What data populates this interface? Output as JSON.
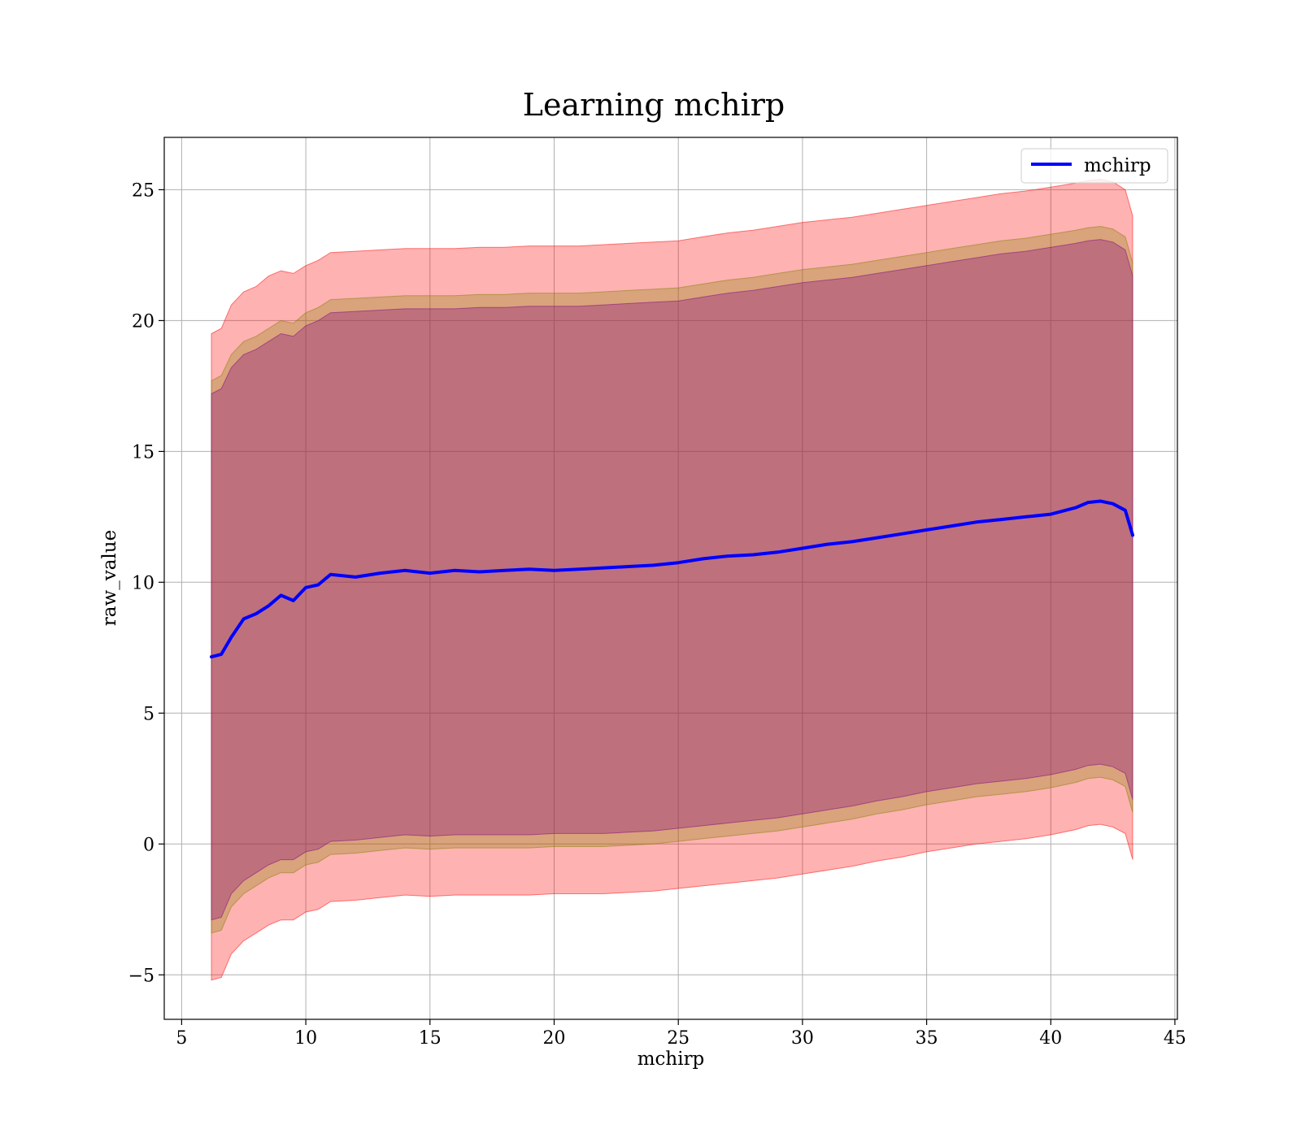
{
  "chart_data": {
    "type": "area",
    "title": "Learning mchirp",
    "xlabel": "mchirp",
    "ylabel": "raw_value",
    "xlim": [
      4.3,
      45.1
    ],
    "ylim": [
      -6.7,
      27.0
    ],
    "xticks": [
      5,
      10,
      15,
      20,
      25,
      30,
      35,
      40,
      45
    ],
    "yticks": [
      -5,
      0,
      5,
      10,
      15,
      20,
      25
    ],
    "xtick_labels": [
      "5",
      "10",
      "15",
      "20",
      "25",
      "30",
      "35",
      "40",
      "45"
    ],
    "ytick_labels": [
      "−5",
      "0",
      "5",
      "10",
      "15",
      "20",
      "25"
    ],
    "grid": true,
    "legend": {
      "position": "top-right",
      "entries": [
        "mchirp"
      ]
    },
    "x": [
      6.2,
      6.6,
      7.0,
      7.5,
      8.0,
      8.5,
      9.0,
      9.5,
      10.0,
      10.5,
      11.0,
      12.0,
      13.0,
      14.0,
      15.0,
      16.0,
      17.0,
      18.0,
      19.0,
      20.0,
      21.0,
      22.0,
      23.0,
      24.0,
      25.0,
      26.0,
      27.0,
      28.0,
      29.0,
      30.0,
      31.0,
      32.0,
      33.0,
      34.0,
      35.0,
      36.0,
      37.0,
      38.0,
      39.0,
      40.0,
      41.0,
      41.5,
      42.0,
      42.5,
      43.0,
      43.3
    ],
    "series": [
      {
        "name": "mchirp",
        "color": "#0000ff",
        "values": [
          7.15,
          7.25,
          7.9,
          8.6,
          8.8,
          9.1,
          9.5,
          9.3,
          9.8,
          9.9,
          10.3,
          10.2,
          10.35,
          10.45,
          10.35,
          10.45,
          10.4,
          10.45,
          10.5,
          10.45,
          10.5,
          10.55,
          10.6,
          10.65,
          10.75,
          10.9,
          11.0,
          11.05,
          11.15,
          11.3,
          11.45,
          11.55,
          11.7,
          11.85,
          12.0,
          12.15,
          12.3,
          12.4,
          12.5,
          12.6,
          12.85,
          13.05,
          13.1,
          13.0,
          12.75,
          11.8
        ]
      }
    ],
    "bands": [
      {
        "color": "#ff0000",
        "opacity": 0.3,
        "upper": [
          19.5,
          19.7,
          20.6,
          21.1,
          21.3,
          21.7,
          21.9,
          21.8,
          22.1,
          22.3,
          22.6,
          22.65,
          22.7,
          22.75,
          22.75,
          22.75,
          22.8,
          22.8,
          22.85,
          22.85,
          22.85,
          22.9,
          22.95,
          23.0,
          23.05,
          23.2,
          23.35,
          23.45,
          23.6,
          23.75,
          23.85,
          23.95,
          24.1,
          24.25,
          24.4,
          24.55,
          24.7,
          24.85,
          24.95,
          25.1,
          25.25,
          25.35,
          25.4,
          25.3,
          25.0,
          24.0
        ],
        "lower": [
          -5.2,
          -5.1,
          -4.2,
          -3.7,
          -3.4,
          -3.1,
          -2.9,
          -2.9,
          -2.6,
          -2.5,
          -2.2,
          -2.15,
          -2.05,
          -1.95,
          -2.0,
          -1.95,
          -1.95,
          -1.95,
          -1.95,
          -1.9,
          -1.9,
          -1.9,
          -1.85,
          -1.8,
          -1.7,
          -1.6,
          -1.5,
          -1.4,
          -1.3,
          -1.15,
          -1.0,
          -0.85,
          -0.65,
          -0.5,
          -0.3,
          -0.15,
          0.0,
          0.1,
          0.2,
          0.35,
          0.55,
          0.7,
          0.75,
          0.65,
          0.4,
          -0.6
        ]
      },
      {
        "color": "#808000",
        "opacity": 0.3,
        "upper": [
          17.7,
          17.9,
          18.7,
          19.2,
          19.4,
          19.7,
          20.0,
          19.9,
          20.3,
          20.5,
          20.8,
          20.85,
          20.9,
          20.95,
          20.95,
          20.95,
          21.0,
          21.0,
          21.05,
          21.05,
          21.05,
          21.1,
          21.15,
          21.2,
          21.25,
          21.4,
          21.55,
          21.65,
          21.8,
          21.95,
          22.05,
          22.15,
          22.3,
          22.45,
          22.6,
          22.75,
          22.9,
          23.05,
          23.15,
          23.3,
          23.45,
          23.55,
          23.6,
          23.5,
          23.2,
          22.2
        ],
        "lower": [
          -3.4,
          -3.3,
          -2.4,
          -1.9,
          -1.6,
          -1.3,
          -1.1,
          -1.1,
          -0.8,
          -0.7,
          -0.4,
          -0.35,
          -0.25,
          -0.15,
          -0.2,
          -0.15,
          -0.15,
          -0.15,
          -0.15,
          -0.1,
          -0.1,
          -0.1,
          -0.05,
          0.0,
          0.1,
          0.2,
          0.3,
          0.4,
          0.5,
          0.65,
          0.8,
          0.95,
          1.15,
          1.3,
          1.5,
          1.65,
          1.8,
          1.9,
          2.0,
          2.15,
          2.35,
          2.5,
          2.55,
          2.45,
          2.2,
          1.2
        ]
      },
      {
        "color": "#800080",
        "opacity": 0.3,
        "upper": [
          17.2,
          17.4,
          18.2,
          18.7,
          18.9,
          19.2,
          19.5,
          19.4,
          19.8,
          20.0,
          20.3,
          20.35,
          20.4,
          20.45,
          20.45,
          20.45,
          20.5,
          20.5,
          20.55,
          20.55,
          20.55,
          20.6,
          20.65,
          20.7,
          20.75,
          20.9,
          21.05,
          21.15,
          21.3,
          21.45,
          21.55,
          21.65,
          21.8,
          21.95,
          22.1,
          22.25,
          22.4,
          22.55,
          22.65,
          22.8,
          22.95,
          23.05,
          23.1,
          23.0,
          22.7,
          21.7
        ],
        "lower": [
          -2.9,
          -2.8,
          -1.9,
          -1.4,
          -1.1,
          -0.8,
          -0.6,
          -0.6,
          -0.3,
          -0.2,
          0.1,
          0.15,
          0.25,
          0.35,
          0.3,
          0.35,
          0.35,
          0.35,
          0.35,
          0.4,
          0.4,
          0.4,
          0.45,
          0.5,
          0.6,
          0.7,
          0.8,
          0.9,
          1.0,
          1.15,
          1.3,
          1.45,
          1.65,
          1.8,
          2.0,
          2.15,
          2.3,
          2.4,
          2.5,
          2.65,
          2.85,
          3.0,
          3.05,
          2.95,
          2.7,
          1.7
        ]
      }
    ]
  }
}
